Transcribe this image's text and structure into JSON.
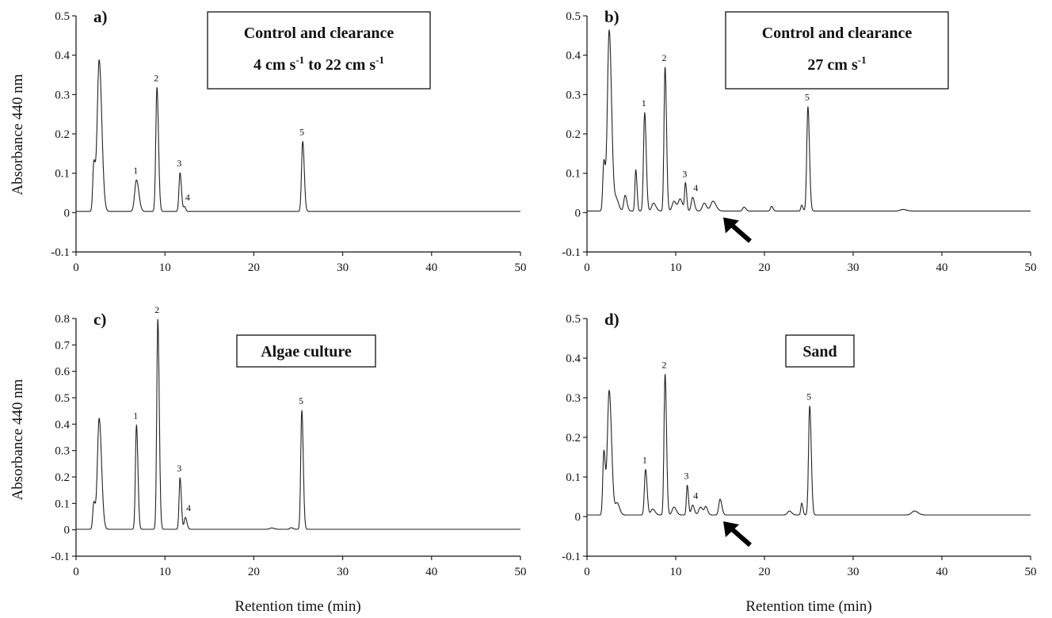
{
  "xlabel": "Retention time (min)",
  "ylabel": "Absorbance 440 nm",
  "chart_data": [
    {
      "type": "line",
      "panel": "a)",
      "label_lines": [
        "Control and clearance",
        [
          "4 cm s",
          "-1",
          " to 22 cm s",
          "-1"
        ]
      ],
      "xlim": [
        0,
        50
      ],
      "ylim": [
        -0.1,
        0.5
      ],
      "x_ticks": [
        "0",
        "10",
        "20",
        "30",
        "40",
        "50"
      ],
      "y_ticks": [
        "-0.1",
        "0",
        "0.1",
        "0.2",
        "0.3",
        "0.4",
        "0.5"
      ],
      "y_tick_values": [
        -0.1,
        0,
        0.1,
        0.2,
        0.3,
        0.4,
        0.5
      ],
      "baseline": 0.003,
      "arrow_x": null,
      "peaks": [
        {
          "rt": 2.0,
          "height": 0.12,
          "width": 0.12
        },
        {
          "rt": 2.6,
          "height": 0.385,
          "width": 0.22
        },
        {
          "rt": 6.8,
          "height": 0.08,
          "width": 0.2,
          "label": "1"
        },
        {
          "rt": 9.1,
          "height": 0.315,
          "width": 0.13,
          "label": "2"
        },
        {
          "rt": 11.7,
          "height": 0.098,
          "width": 0.12,
          "label": "3"
        },
        {
          "rt": 12.2,
          "height": 0.012,
          "width": 0.1,
          "label": "4"
        },
        {
          "rt": 25.5,
          "height": 0.178,
          "width": 0.13,
          "label": "5"
        }
      ]
    },
    {
      "type": "line",
      "panel": "b)",
      "label_lines": [
        "Control and clearance",
        [
          "27 cm s",
          "-1"
        ]
      ],
      "xlim": [
        0,
        50
      ],
      "ylim": [
        -0.1,
        0.5
      ],
      "x_ticks": [
        "0",
        "10",
        "20",
        "30",
        "40",
        "50"
      ],
      "y_ticks": [
        "-0.1",
        "0",
        "0.1",
        "0.2",
        "0.3",
        "0.4",
        "0.5"
      ],
      "y_tick_values": [
        -0.1,
        0,
        0.1,
        0.2,
        0.3,
        0.4,
        0.5
      ],
      "baseline": 0.004,
      "arrow_x": 15,
      "peaks": [
        {
          "rt": 1.9,
          "height": 0.125,
          "width": 0.12
        },
        {
          "rt": 2.5,
          "height": 0.46,
          "width": 0.2
        },
        {
          "rt": 3.3,
          "height": 0.03,
          "width": 0.2
        },
        {
          "rt": 4.3,
          "height": 0.04,
          "width": 0.15
        },
        {
          "rt": 5.5,
          "height": 0.105,
          "width": 0.1
        },
        {
          "rt": 6.5,
          "height": 0.25,
          "width": 0.13,
          "label": "1"
        },
        {
          "rt": 7.5,
          "height": 0.02,
          "width": 0.2
        },
        {
          "rt": 8.8,
          "height": 0.365,
          "width": 0.12,
          "label": "2"
        },
        {
          "rt": 9.8,
          "height": 0.025,
          "width": 0.2
        },
        {
          "rt": 10.5,
          "height": 0.03,
          "width": 0.2
        },
        {
          "rt": 11.1,
          "height": 0.07,
          "width": 0.1,
          "label": "3"
        },
        {
          "rt": 11.9,
          "height": 0.035,
          "width": 0.15,
          "label": "4"
        },
        {
          "rt": 13.2,
          "height": 0.02,
          "width": 0.2
        },
        {
          "rt": 14.2,
          "height": 0.025,
          "width": 0.25
        },
        {
          "rt": 17.7,
          "height": 0.01,
          "width": 0.15
        },
        {
          "rt": 20.8,
          "height": 0.012,
          "width": 0.12
        },
        {
          "rt": 24.2,
          "height": 0.015,
          "width": 0.1
        },
        {
          "rt": 24.9,
          "height": 0.265,
          "width": 0.13,
          "label": "5"
        },
        {
          "rt": 35.6,
          "height": 0.004,
          "width": 0.3
        }
      ]
    },
    {
      "type": "line",
      "panel": "c)",
      "label_lines": [
        "Algae culture"
      ],
      "xlim": [
        0,
        50
      ],
      "ylim": [
        -0.1,
        0.8
      ],
      "x_ticks": [
        "0",
        "10",
        "20",
        "30",
        "40",
        "50"
      ],
      "y_ticks": [
        "-0.1",
        "0",
        "0.1",
        "0.2",
        "0.3",
        "0.4",
        "0.5",
        "0.6",
        "0.7",
        "0.8"
      ],
      "y_tick_values": [
        -0.1,
        0,
        0.1,
        0.2,
        0.3,
        0.4,
        0.5,
        0.6,
        0.7,
        0.8
      ],
      "baseline": 0.002,
      "arrow_x": null,
      "peaks": [
        {
          "rt": 2.0,
          "height": 0.1,
          "width": 0.12
        },
        {
          "rt": 2.6,
          "height": 0.42,
          "width": 0.2
        },
        {
          "rt": 6.8,
          "height": 0.395,
          "width": 0.12,
          "label": "1"
        },
        {
          "rt": 9.2,
          "height": 0.795,
          "width": 0.12,
          "label": "2"
        },
        {
          "rt": 11.7,
          "height": 0.195,
          "width": 0.11,
          "label": "3"
        },
        {
          "rt": 12.3,
          "height": 0.045,
          "width": 0.13,
          "label": "4"
        },
        {
          "rt": 22.0,
          "height": 0.005,
          "width": 0.2
        },
        {
          "rt": 24.2,
          "height": 0.006,
          "width": 0.15
        },
        {
          "rt": 25.4,
          "height": 0.45,
          "width": 0.12,
          "label": "5"
        }
      ]
    },
    {
      "type": "line",
      "panel": "d)",
      "label_lines": [
        "Sand"
      ],
      "xlim": [
        0,
        50
      ],
      "ylim": [
        -0.1,
        0.5
      ],
      "x_ticks": [
        "0",
        "10",
        "20",
        "30",
        "40",
        "50"
      ],
      "y_ticks": [
        "-0.1",
        "0",
        "0.1",
        "0.2",
        "0.3",
        "0.4",
        "0.5"
      ],
      "y_tick_values": [
        -0.1,
        0,
        0.1,
        0.2,
        0.3,
        0.4,
        0.5
      ],
      "baseline": 0.004,
      "arrow_x": 15,
      "peaks": [
        {
          "rt": 1.9,
          "height": 0.16,
          "width": 0.12
        },
        {
          "rt": 2.5,
          "height": 0.315,
          "width": 0.2
        },
        {
          "rt": 3.4,
          "height": 0.03,
          "width": 0.2
        },
        {
          "rt": 6.6,
          "height": 0.115,
          "width": 0.13,
          "label": "1"
        },
        {
          "rt": 7.4,
          "height": 0.015,
          "width": 0.2
        },
        {
          "rt": 8.8,
          "height": 0.355,
          "width": 0.12,
          "label": "2"
        },
        {
          "rt": 9.8,
          "height": 0.02,
          "width": 0.2
        },
        {
          "rt": 11.3,
          "height": 0.075,
          "width": 0.1,
          "label": "3"
        },
        {
          "rt": 11.9,
          "height": 0.025,
          "width": 0.15,
          "label": "4"
        },
        {
          "rt": 12.8,
          "height": 0.02,
          "width": 0.2
        },
        {
          "rt": 13.4,
          "height": 0.02,
          "width": 0.15
        },
        {
          "rt": 15.0,
          "height": 0.04,
          "width": 0.15
        },
        {
          "rt": 22.8,
          "height": 0.01,
          "width": 0.2
        },
        {
          "rt": 24.2,
          "height": 0.03,
          "width": 0.1
        },
        {
          "rt": 25.1,
          "height": 0.275,
          "width": 0.13,
          "label": "5"
        },
        {
          "rt": 36.9,
          "height": 0.01,
          "width": 0.3
        }
      ]
    }
  ]
}
